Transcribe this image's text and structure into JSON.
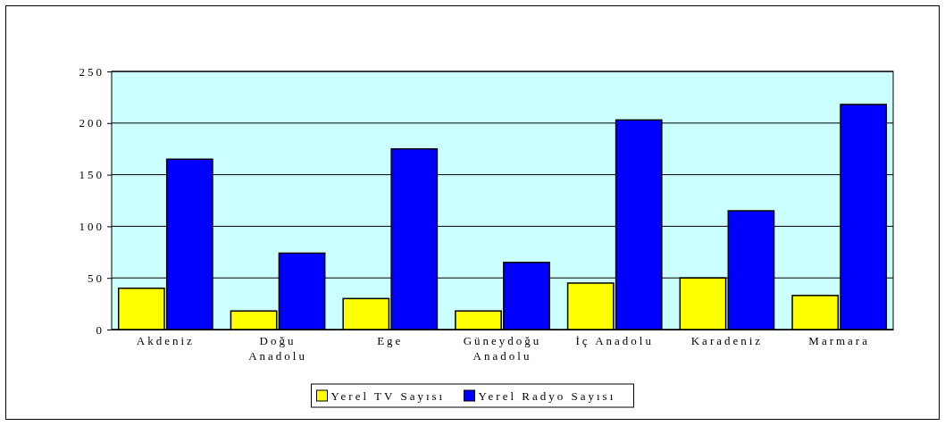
{
  "chart_data": {
    "type": "bar",
    "categories": [
      "Akdeniz",
      "Doğu Anadolu",
      "Ege",
      "Güneydoğu Anadolu",
      "İç Anadolu",
      "Karadeniz",
      "Marmara"
    ],
    "series": [
      {
        "name": "Yerel TV Sayısı",
        "color": "#ffff00",
        "values": [
          40,
          18,
          30,
          18,
          45,
          50,
          33
        ]
      },
      {
        "name": "Yerel Radyo Sayısı",
        "color": "#0000ff",
        "values": [
          165,
          74,
          175,
          65,
          203,
          115,
          218
        ]
      }
    ],
    "ylim": [
      0,
      250
    ],
    "yticks": [
      0,
      50,
      100,
      150,
      200,
      250
    ],
    "grid": "y",
    "legend": "bottom"
  }
}
